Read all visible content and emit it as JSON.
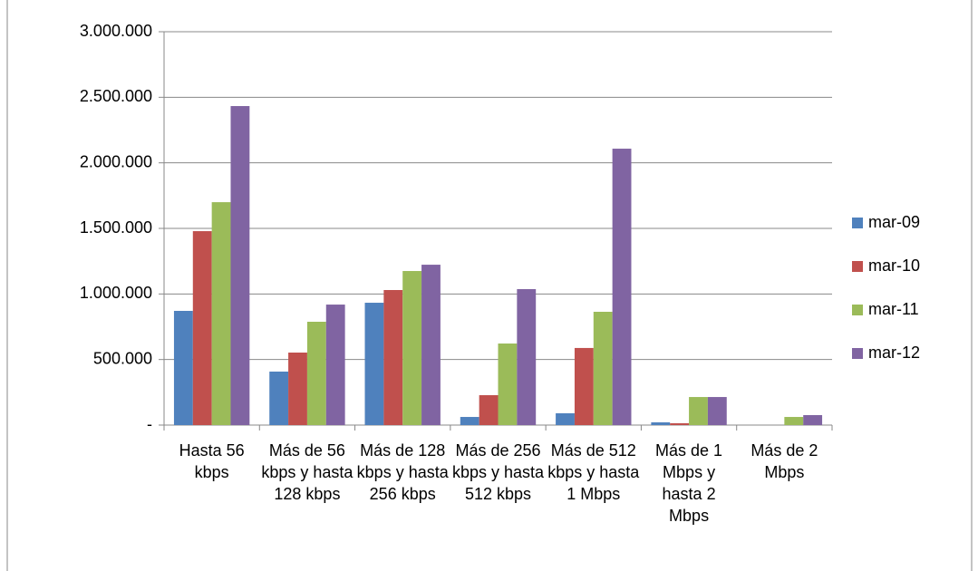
{
  "chart_data": {
    "type": "bar",
    "categories": [
      "Hasta 56 kbps",
      "Más de 56 kbps y hasta 128 kbps",
      "Más de 128 kbps y hasta 256 kbps",
      "Más de 256 kbps y hasta 512 kbps",
      "Más de 512 kbps y hasta 1 Mbps",
      "Más de 1 Mbps y hasta 2 Mbps",
      "Más de 2 Mbps"
    ],
    "series": [
      {
        "name": "mar-09",
        "color": "#4f81bd",
        "values": [
          871000,
          408000,
          933000,
          62000,
          90000,
          21000,
          0
        ]
      },
      {
        "name": "mar-10",
        "color": "#c0504d",
        "values": [
          1479000,
          553000,
          1030000,
          228000,
          588000,
          14000,
          0
        ]
      },
      {
        "name": "mar-11",
        "color": "#9bbb59",
        "values": [
          1700000,
          788000,
          1175000,
          622000,
          864000,
          214000,
          62000
        ]
      },
      {
        "name": "mar-12",
        "color": "#8064a2",
        "values": [
          2433000,
          919000,
          1223000,
          1037000,
          2108000,
          214000,
          76000
        ]
      }
    ],
    "ylim": [
      0,
      3000000
    ],
    "yticks": [
      {
        "value": 0,
        "label": "-"
      },
      {
        "value": 500000,
        "label": "500.000"
      },
      {
        "value": 1000000,
        "label": "1.000.000"
      },
      {
        "value": 1500000,
        "label": "1.500.000"
      },
      {
        "value": 2000000,
        "label": "2.000.000"
      },
      {
        "value": 2500000,
        "label": "2.500.000"
      },
      {
        "value": 3000000,
        "label": "3.000.000"
      }
    ],
    "grid": true,
    "legend": "right"
  }
}
